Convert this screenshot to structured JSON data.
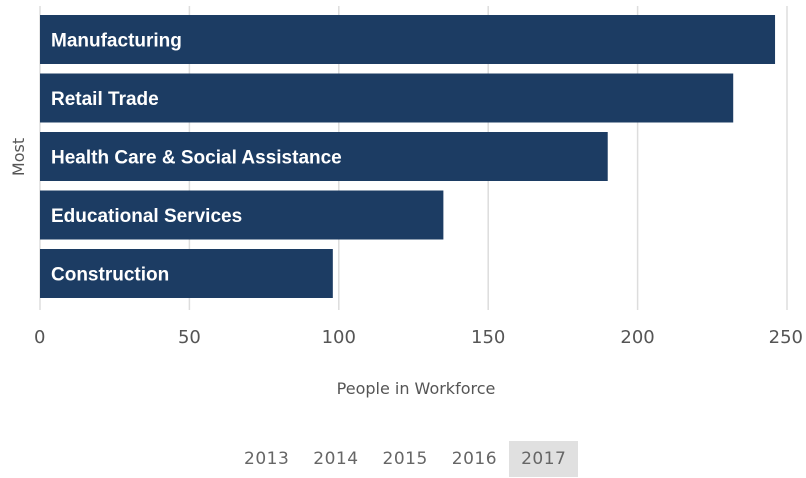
{
  "chart_data": {
    "type": "bar",
    "orientation": "horizontal",
    "categories": [
      "Manufacturing",
      "Retail Trade",
      "Health Care & Social Assistance",
      "Educational Services",
      "Construction"
    ],
    "values": [
      246,
      232,
      190,
      135,
      98
    ],
    "xlabel": "People in Workforce",
    "ylabel": "Most",
    "xlim": [
      0,
      250
    ],
    "xticks": [
      0,
      50,
      100,
      150,
      200,
      250
    ],
    "grid": true,
    "colors": {
      "bar": "#1c3c63",
      "grid": "#dddddd"
    }
  },
  "year_selector": {
    "years": [
      "2013",
      "2014",
      "2015",
      "2016",
      "2017"
    ],
    "selected": "2017"
  }
}
